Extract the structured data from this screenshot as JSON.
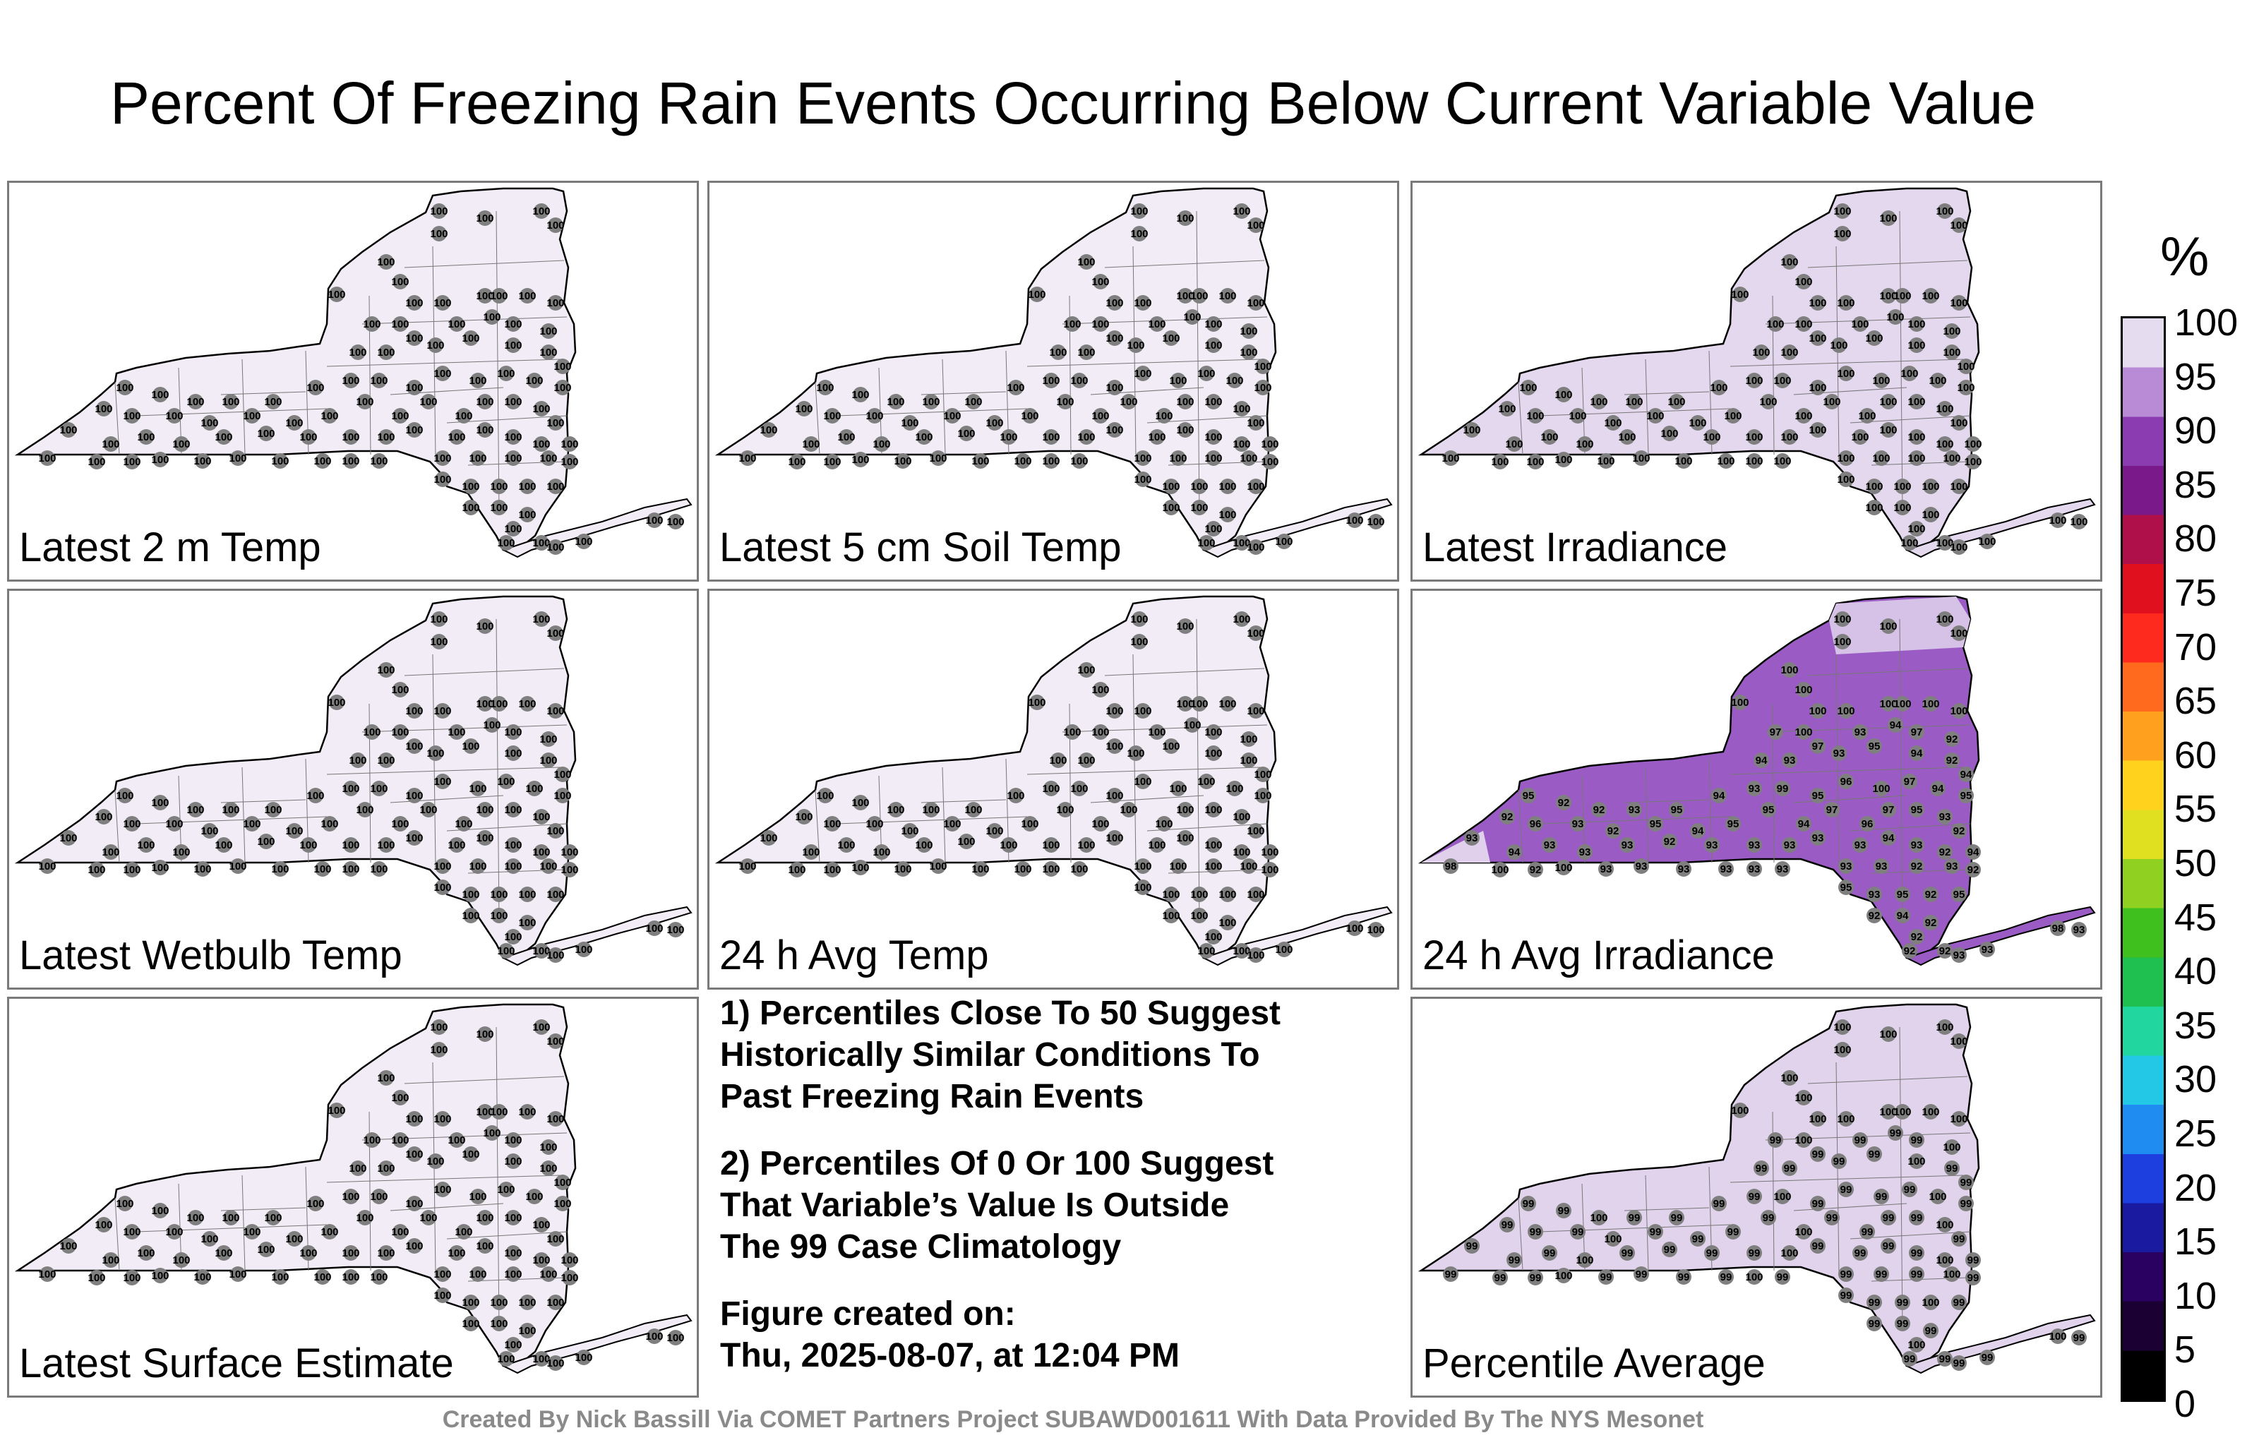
{
  "title": "Percent Of Freezing Rain Events Occurring Below Current Variable Value",
  "panels": [
    {
      "label": "Latest 2 m Temp",
      "value_label": "100",
      "fill": "#f1ecf5",
      "mode": "uniform"
    },
    {
      "label": "Latest 5 cm Soil Temp",
      "value_label": "100",
      "fill": "#f1ecf5",
      "mode": "uniform"
    },
    {
      "label": "Latest Irradiance",
      "value_label": "100",
      "fill": "#e4d8ee",
      "mode": "uniform"
    },
    {
      "label": "Latest Wetbulb Temp",
      "value_label": "100",
      "fill": "#f1ecf5",
      "mode": "uniform"
    },
    {
      "label": "24 h Avg Temp",
      "value_label": "100",
      "fill": "#f1ecf5",
      "mode": "uniform"
    },
    {
      "label": "24 h Avg Irradiance",
      "value_label": "93",
      "fill": "#9a5cc4",
      "mode": "purple"
    },
    {
      "label": "Latest Surface Estimate",
      "value_label": "100",
      "fill": "#f1ecf5",
      "mode": "uniform"
    },
    {
      "label": "Percentile Average",
      "value_label": "99",
      "fill": "#e1d3ec",
      "mode": "average"
    }
  ],
  "notes": {
    "note1": "1) Percentiles Close To 50 Suggest\nHistorically Similar Conditions To\nPast Freezing Rain Events",
    "note2": "2) Percentiles Of 0 Or 100 Suggest\nThat Variable’s Value Is Outside\nThe 99 Case Climatology",
    "created": "Figure created on:\nThu, 2025-08-07, at 12:04 PM"
  },
  "credit": "Created By Nick Bassill Via COMET Partners Project SUBAWD001611 With Data Provided By The NYS Mesonet",
  "colorbar": {
    "unit": "%",
    "ticks": [
      "100",
      "95",
      "90",
      "85",
      "80",
      "75",
      "70",
      "65",
      "60",
      "55",
      "50",
      "45",
      "40",
      "35",
      "30",
      "25",
      "20",
      "15",
      "10",
      "5",
      "0"
    ],
    "colors": [
      "#000000",
      "#1a0033",
      "#2a0060",
      "#1a1aa0",
      "#1e3fe0",
      "#1e8cf0",
      "#22c8e6",
      "#22d6a0",
      "#1fbf50",
      "#3fc01f",
      "#90d020",
      "#e0e020",
      "#ffd21e",
      "#ffa01e",
      "#ff6a1e",
      "#ff2a1e",
      "#e0101e",
      "#b0104a",
      "#7a1a8a",
      "#8a3cb0",
      "#b98bd6",
      "#e6dcef"
    ]
  }
}
